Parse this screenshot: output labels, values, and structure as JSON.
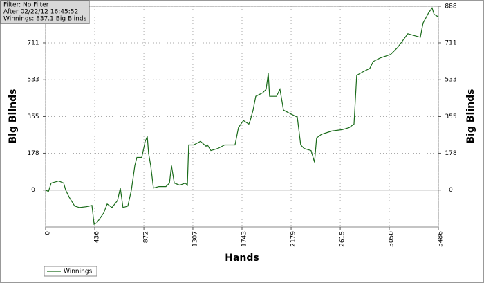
{
  "chart_data": {
    "type": "line",
    "annotations": [
      "Filter: No Filter",
      "After 02/22/12 16:45:52",
      "Winnings: 837.1 Big Blinds"
    ],
    "x_label": "Hands",
    "y_label": "Big Blinds",
    "x": [
      0,
      25,
      49,
      116,
      160,
      178,
      209,
      258,
      301,
      362,
      411,
      430,
      454,
      515,
      546,
      589,
      638,
      663,
      687,
      730,
      761,
      792,
      810,
      853,
      884,
      902,
      914,
      933,
      957,
      1006,
      1068,
      1099,
      1117,
      1142,
      1191,
      1240,
      1258,
      1270,
      1313,
      1375,
      1424,
      1436,
      1467,
      1528,
      1589,
      1681,
      1712,
      1755,
      1804,
      1816,
      1841,
      1865,
      1927,
      1957,
      1976,
      1988,
      2050,
      2080,
      2111,
      2172,
      2234,
      2264,
      2295,
      2356,
      2387,
      2405,
      2448,
      2540,
      2632,
      2694,
      2737,
      2761,
      2816,
      2878,
      2908,
      2970,
      3062,
      3123,
      3215,
      3326,
      3350,
      3399,
      3430,
      3448,
      3486
    ],
    "series": [
      {
        "name": "Winnings",
        "color": "#1a6b1a",
        "values": [
          0,
          -7,
          34,
          44,
          34,
          0,
          -34,
          -77,
          -84,
          -80,
          -74,
          -165,
          -158,
          -111,
          -67,
          -84,
          -50,
          10,
          -84,
          -77,
          0,
          118,
          158,
          158,
          235,
          259,
          178,
          118,
          10,
          17,
          17,
          34,
          118,
          34,
          24,
          34,
          24,
          218,
          218,
          235,
          212,
          218,
          191,
          201,
          218,
          218,
          302,
          336,
          319,
          336,
          386,
          453,
          470,
          487,
          564,
          453,
          453,
          487,
          386,
          369,
          352,
          218,
          201,
          191,
          134,
          252,
          269,
          285,
          292,
          302,
          319,
          554,
          571,
          588,
          621,
          638,
          655,
          688,
          755,
          738,
          806,
          856,
          880,
          849,
          837
        ]
      }
    ],
    "xlim": [
      0,
      3486
    ],
    "xticks": [
      0,
      436,
      872,
      1307,
      1743,
      2179,
      2615,
      3050,
      3486
    ],
    "ylim": [
      -178,
      888
    ],
    "yticks": [
      0,
      178,
      355,
      533,
      711,
      888
    ],
    "grid": true,
    "legend": "bottom-left"
  }
}
